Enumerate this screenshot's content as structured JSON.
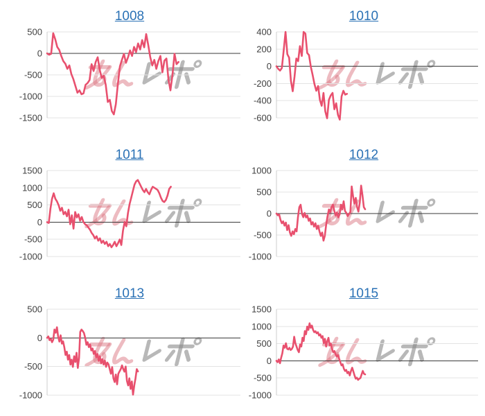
{
  "page": {
    "background": "#ffffff"
  },
  "style": {
    "line_color": "#e8506e",
    "grid_color": "#e3e3e3",
    "zero_line_color": "#3a3a3a",
    "axis_color": "#cccccc",
    "tick_color": "#404040",
    "title_color": "#2a71b5",
    "watermark_pink": "rgba(219,120,132,0.5)",
    "watermark_gray": "rgba(136,136,136,0.6)"
  },
  "watermark": {
    "text": "みんレポ"
  },
  "chart_data": [
    {
      "type": "line",
      "title": "1008",
      "ylim": [
        -1500,
        500
      ],
      "yticks": [
        500,
        0,
        -500,
        -1000,
        -1500
      ],
      "x_fill_fraction": 0.68,
      "grid": true,
      "values": [
        0,
        -30,
        -10,
        470,
        330,
        150,
        80,
        -60,
        -180,
        -240,
        -360,
        -280,
        -480,
        -600,
        -760,
        -915,
        -860,
        -950,
        -930,
        -730,
        -690,
        -620,
        -250,
        -410,
        -200,
        -90,
        -380,
        -570,
        -520,
        -730,
        -1130,
        -1080,
        -1340,
        -1420,
        -1180,
        -700,
        -300,
        -150,
        -10,
        -220,
        -90,
        70,
        -60,
        150,
        30,
        230,
        90,
        310,
        140,
        450,
        200,
        -90,
        -280,
        -150,
        -360,
        -180,
        -60,
        -440,
        -170,
        -120,
        -600,
        -860,
        -490,
        -10,
        -250,
        -200
      ]
    },
    {
      "type": "line",
      "title": "1010",
      "ylim": [
        -600,
        400
      ],
      "yticks": [
        400,
        200,
        0,
        -200,
        -400,
        -600
      ],
      "x_fill_fraction": 0.35,
      "grid": true,
      "values": [
        0,
        -30,
        -50,
        -20,
        180,
        400,
        140,
        100,
        -170,
        -290,
        -120,
        90,
        60,
        235,
        120,
        400,
        380,
        155,
        130,
        -5,
        -100,
        -205,
        -285,
        -230,
        -390,
        -460,
        -310,
        -525,
        -605,
        -390,
        -340,
        -310,
        -500,
        -430,
        -565,
        -620,
        -350,
        -285,
        -330,
        -320
      ]
    },
    {
      "type": "line",
      "title": "1011",
      "ylim": [
        -1000,
        1500
      ],
      "yticks": [
        1500,
        1000,
        500,
        0,
        -500,
        -1000
      ],
      "x_fill_fraction": 0.64,
      "grid": true,
      "values": [
        0,
        -25,
        390,
        680,
        840,
        680,
        600,
        490,
        330,
        420,
        230,
        300,
        170,
        360,
        -60,
        200,
        -190,
        295,
        135,
        230,
        40,
        150,
        5,
        -60,
        -90,
        -155,
        -220,
        -315,
        -380,
        -475,
        -410,
        -540,
        -470,
        -605,
        -540,
        -635,
        -570,
        -700,
        -635,
        -730,
        -665,
        -570,
        -700,
        -610,
        -505,
        -665,
        -250,
        5,
        -120,
        265,
        520,
        710,
        905,
        1095,
        1190,
        1225,
        1130,
        1030,
        935,
        870,
        965,
        870,
        810,
        935,
        1030,
        1000,
        970,
        935,
        840,
        710,
        615,
        585,
        645,
        775,
        965,
        1030
      ]
    },
    {
      "type": "line",
      "title": "1012",
      "ylim": [
        -1000,
        1000
      ],
      "yticks": [
        1000,
        500,
        0,
        -500,
        -1000
      ],
      "x_fill_fraction": 0.44,
      "grid": true,
      "values": [
        0,
        -40,
        -20,
        -145,
        -225,
        -180,
        -280,
        -210,
        -385,
        -270,
        -440,
        -520,
        -415,
        -480,
        -360,
        -415,
        -90,
        150,
        205,
        -10,
        -85,
        15,
        -90,
        -45,
        -170,
        -115,
        -255,
        -200,
        -305,
        -225,
        -360,
        -280,
        -415,
        -520,
        -440,
        -630,
        -520,
        -255,
        -65,
        95,
        30,
        150,
        205,
        70,
        -40,
        25,
        -90,
        -20,
        205,
        95,
        285,
        60,
        15,
        -60,
        -10,
        35,
        630,
        400,
        230,
        365,
        150,
        45,
        260,
        650,
        420,
        150,
        100
      ]
    },
    {
      "type": "line",
      "title": "1013",
      "ylim": [
        -1000,
        500
      ],
      "yticks": [
        500,
        0,
        -500,
        -1000
      ],
      "x_fill_fraction": 0.47,
      "grid": true,
      "values": [
        0,
        25,
        -40,
        -15,
        -75,
        -30,
        145,
        90,
        185,
        25,
        -65,
        45,
        -100,
        -60,
        -160,
        -300,
        -240,
        -380,
        -300,
        -465,
        -380,
        -505,
        -320,
        -420,
        -260,
        -525,
        -350,
        105,
        145,
        120,
        85,
        5,
        -120,
        -75,
        -160,
        -115,
        -220,
        -185,
        -280,
        -230,
        -340,
        -280,
        -400,
        -320,
        -445,
        -370,
        -465,
        -395,
        -505,
        -430,
        -460,
        -545,
        -625,
        -510,
        -705,
        -770,
        -640,
        -810,
        -625,
        -585,
        -545,
        -480,
        -545,
        -590,
        -500,
        -750,
        -830,
        -705,
        -890,
        -760,
        -990,
        -830,
        -705,
        -545,
        -585
      ]
    },
    {
      "type": "line",
      "title": "1015",
      "ylim": [
        -1000,
        1500
      ],
      "yticks": [
        1500,
        1000,
        500,
        0,
        -500,
        -1000
      ],
      "x_fill_fraction": 0.44,
      "grid": true,
      "values": [
        0,
        -40,
        40,
        -70,
        90,
        220,
        445,
        380,
        510,
        350,
        330,
        380,
        315,
        345,
        415,
        700,
        510,
        415,
        315,
        250,
        475,
        415,
        670,
        575,
        865,
        770,
        995,
        900,
        1090,
        960,
        1025,
        900,
        830,
        860,
        800,
        830,
        735,
        770,
        670,
        720,
        510,
        640,
        415,
        575,
        670,
        445,
        500,
        350,
        250,
        285,
        185,
        125,
        170,
        60,
        -40,
        -135,
        -100,
        -230,
        -295,
        -265,
        -360,
        -320,
        -425,
        -295,
        -200,
        -310,
        -425,
        -520,
        -490,
        -555,
        -520,
        -500,
        -395,
        -295,
        -375,
        -395
      ]
    }
  ]
}
